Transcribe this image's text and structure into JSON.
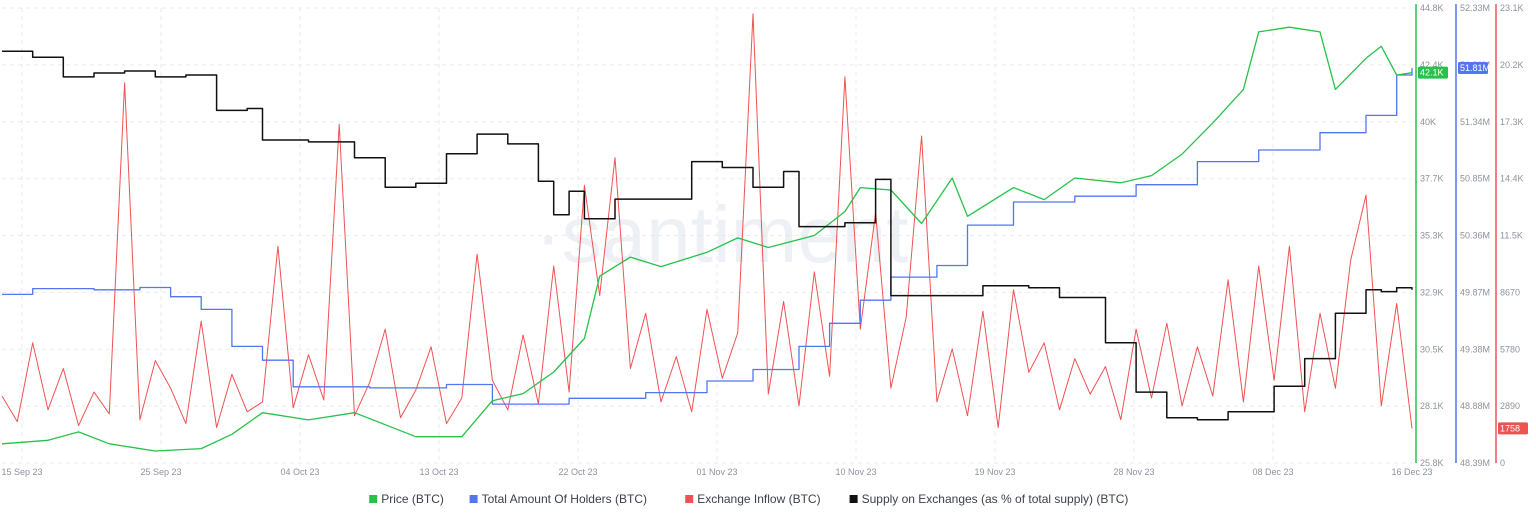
{
  "watermark": "·santiment",
  "colors": {
    "price": "#26c24a",
    "holders": "#5276f0",
    "inflow": "#f05252",
    "supply": "#111111",
    "grid": "#e9ebef",
    "tick": "#8d929c"
  },
  "chart_data": {
    "type": "line",
    "title": "",
    "x_ticks": [
      "15 Sep 23",
      "25 Sep 23",
      "04 Oct 23",
      "13 Oct 23",
      "22 Oct 23",
      "01 Nov 23",
      "10 Nov 23",
      "19 Nov 23",
      "28 Nov 23",
      "08 Dec 23",
      "16 Dec 23"
    ],
    "x_range": [
      "2023-09-15",
      "2023-12-16"
    ],
    "axes": {
      "price": {
        "min": 25800,
        "max": 44800,
        "ticks": [
          "44.8K",
          "42.4K",
          "40K",
          "37.7K",
          "35.3K",
          "32.9K",
          "30.5K",
          "28.1K",
          "25.8K"
        ],
        "latest": "42.1K"
      },
      "holders": {
        "min": 48390000,
        "max": 52330000,
        "ticks": [
          "52.33M",
          "51.81M",
          "51.34M",
          "50.85M",
          "50.36M",
          "49.87M",
          "49.38M",
          "48.88M",
          "48.39M"
        ],
        "latest": "51.81M"
      },
      "inflow": {
        "min": 0,
        "max": 23100,
        "ticks": [
          "23.1K",
          "20.2K",
          "17.3K",
          "14.4K",
          "11.5K",
          "8670",
          "5780",
          "2890",
          "0"
        ],
        "latest": "1758"
      }
    },
    "legend_position": "bottom-center",
    "series": [
      {
        "name": "Price (BTC)",
        "axis": "price",
        "points": [
          [
            "2023-09-15",
            26600
          ],
          [
            "2023-09-18",
            26750
          ],
          [
            "2023-09-20",
            27100
          ],
          [
            "2023-09-22",
            26600
          ],
          [
            "2023-09-25",
            26300
          ],
          [
            "2023-09-28",
            26400
          ],
          [
            "2023-09-30",
            27000
          ],
          [
            "2023-10-02",
            27900
          ],
          [
            "2023-10-05",
            27600
          ],
          [
            "2023-10-08",
            27900
          ],
          [
            "2023-10-10",
            27400
          ],
          [
            "2023-10-12",
            26900
          ],
          [
            "2023-10-15",
            26900
          ],
          [
            "2023-10-17",
            28400
          ],
          [
            "2023-10-19",
            28700
          ],
          [
            "2023-10-21",
            29600
          ],
          [
            "2023-10-23",
            31000
          ],
          [
            "2023-10-24",
            33600
          ],
          [
            "2023-10-26",
            34400
          ],
          [
            "2023-10-28",
            34000
          ],
          [
            "2023-10-31",
            34600
          ],
          [
            "2023-11-02",
            35200
          ],
          [
            "2023-11-04",
            34800
          ],
          [
            "2023-11-07",
            35300
          ],
          [
            "2023-11-09",
            36300
          ],
          [
            "2023-11-10",
            37300
          ],
          [
            "2023-11-12",
            37200
          ],
          [
            "2023-11-14",
            35800
          ],
          [
            "2023-11-16",
            37700
          ],
          [
            "2023-11-17",
            36100
          ],
          [
            "2023-11-20",
            37300
          ],
          [
            "2023-11-22",
            36800
          ],
          [
            "2023-11-24",
            37700
          ],
          [
            "2023-11-27",
            37500
          ],
          [
            "2023-11-29",
            37800
          ],
          [
            "2023-12-01",
            38700
          ],
          [
            "2023-12-03",
            40000
          ],
          [
            "2023-12-05",
            41400
          ],
          [
            "2023-12-06",
            43800
          ],
          [
            "2023-12-08",
            44000
          ],
          [
            "2023-12-10",
            43800
          ],
          [
            "2023-12-11",
            41400
          ],
          [
            "2023-12-13",
            42700
          ],
          [
            "2023-12-14",
            43200
          ],
          [
            "2023-12-15",
            42000
          ],
          [
            "2023-12-16",
            42100
          ]
        ]
      },
      {
        "name": "Total Amount Of Holders (BTC)",
        "axis": "holders",
        "points": [
          [
            "2023-09-15",
            49850000
          ],
          [
            "2023-09-17",
            49900000
          ],
          [
            "2023-09-21",
            49890000
          ],
          [
            "2023-09-24",
            49910000
          ],
          [
            "2023-09-26",
            49830000
          ],
          [
            "2023-09-28",
            49720000
          ],
          [
            "2023-09-30",
            49400000
          ],
          [
            "2023-10-02",
            49280000
          ],
          [
            "2023-10-04",
            49050000
          ],
          [
            "2023-10-09",
            49040000
          ],
          [
            "2023-10-14",
            49070000
          ],
          [
            "2023-10-17",
            48900000
          ],
          [
            "2023-10-22",
            48950000
          ],
          [
            "2023-10-27",
            49000000
          ],
          [
            "2023-10-31",
            49100000
          ],
          [
            "2023-11-03",
            49200000
          ],
          [
            "2023-11-06",
            49400000
          ],
          [
            "2023-11-08",
            49600000
          ],
          [
            "2023-11-10",
            49800000
          ],
          [
            "2023-11-12",
            50000000
          ],
          [
            "2023-11-15",
            50100000
          ],
          [
            "2023-11-17",
            50450000
          ],
          [
            "2023-11-20",
            50650000
          ],
          [
            "2023-11-24",
            50700000
          ],
          [
            "2023-11-28",
            50800000
          ],
          [
            "2023-12-02",
            51000000
          ],
          [
            "2023-12-06",
            51100000
          ],
          [
            "2023-12-10",
            51250000
          ],
          [
            "2023-12-13",
            51400000
          ],
          [
            "2023-12-15",
            51750000
          ],
          [
            "2023-12-16",
            51810000
          ]
        ]
      },
      {
        "name": "Exchange Inflow (BTC)",
        "axis": "inflow",
        "points": [
          [
            "2023-09-15",
            3400
          ],
          [
            "2023-09-16",
            2100
          ],
          [
            "2023-09-17",
            6100
          ],
          [
            "2023-09-18",
            2700
          ],
          [
            "2023-09-19",
            4800
          ],
          [
            "2023-09-20",
            1900
          ],
          [
            "2023-09-21",
            3600
          ],
          [
            "2023-09-22",
            2500
          ],
          [
            "2023-09-23",
            19300
          ],
          [
            "2023-09-24",
            2200
          ],
          [
            "2023-09-25",
            5200
          ],
          [
            "2023-09-26",
            3800
          ],
          [
            "2023-09-27",
            2000
          ],
          [
            "2023-09-28",
            7200
          ],
          [
            "2023-09-29",
            1800
          ],
          [
            "2023-09-30",
            4500
          ],
          [
            "2023-10-01",
            2600
          ],
          [
            "2023-10-02",
            3100
          ],
          [
            "2023-10-03",
            11000
          ],
          [
            "2023-10-04",
            2800
          ],
          [
            "2023-10-05",
            5500
          ],
          [
            "2023-10-06",
            3200
          ],
          [
            "2023-10-07",
            17200
          ],
          [
            "2023-10-08",
            2400
          ],
          [
            "2023-10-09",
            4100
          ],
          [
            "2023-10-10",
            6800
          ],
          [
            "2023-10-11",
            2300
          ],
          [
            "2023-10-12",
            3700
          ],
          [
            "2023-10-13",
            5900
          ],
          [
            "2023-10-14",
            2000
          ],
          [
            "2023-10-15",
            3300
          ],
          [
            "2023-10-16",
            10600
          ],
          [
            "2023-10-17",
            4200
          ],
          [
            "2023-10-18",
            2700
          ],
          [
            "2023-10-19",
            6500
          ],
          [
            "2023-10-20",
            3000
          ],
          [
            "2023-10-21",
            10000
          ],
          [
            "2023-10-22",
            3600
          ],
          [
            "2023-10-23",
            14100
          ],
          [
            "2023-10-24",
            8500
          ],
          [
            "2023-10-25",
            15500
          ],
          [
            "2023-10-26",
            4800
          ],
          [
            "2023-10-27",
            7600
          ],
          [
            "2023-10-28",
            3100
          ],
          [
            "2023-10-29",
            5400
          ],
          [
            "2023-10-30",
            2600
          ],
          [
            "2023-10-31",
            7800
          ],
          [
            "2023-11-01",
            4300
          ],
          [
            "2023-11-02",
            6600
          ],
          [
            "2023-11-03",
            22800
          ],
          [
            "2023-11-04",
            3500
          ],
          [
            "2023-11-05",
            8200
          ],
          [
            "2023-11-06",
            2900
          ],
          [
            "2023-11-07",
            9700
          ],
          [
            "2023-11-08",
            4400
          ],
          [
            "2023-11-09",
            19600
          ],
          [
            "2023-11-10",
            6800
          ],
          [
            "2023-11-11",
            12700
          ],
          [
            "2023-11-12",
            3800
          ],
          [
            "2023-11-13",
            7400
          ],
          [
            "2023-11-14",
            16600
          ],
          [
            "2023-11-15",
            3100
          ],
          [
            "2023-11-16",
            5800
          ],
          [
            "2023-11-17",
            2400
          ],
          [
            "2023-11-18",
            7700
          ],
          [
            "2023-11-19",
            1800
          ],
          [
            "2023-11-20",
            8800
          ],
          [
            "2023-11-21",
            4600
          ],
          [
            "2023-11-22",
            6100
          ],
          [
            "2023-11-23",
            2700
          ],
          [
            "2023-11-24",
            5300
          ],
          [
            "2023-11-25",
            3500
          ],
          [
            "2023-11-26",
            4900
          ],
          [
            "2023-11-27",
            2200
          ],
          [
            "2023-11-28",
            6800
          ],
          [
            "2023-11-29",
            3300
          ],
          [
            "2023-11-30",
            7100
          ],
          [
            "2023-12-01",
            2900
          ],
          [
            "2023-12-02",
            5900
          ],
          [
            "2023-12-03",
            3400
          ],
          [
            "2023-12-04",
            9300
          ],
          [
            "2023-12-05",
            3100
          ],
          [
            "2023-12-06",
            10000
          ],
          [
            "2023-12-07",
            4200
          ],
          [
            "2023-12-08",
            11000
          ],
          [
            "2023-12-09",
            2600
          ],
          [
            "2023-12-10",
            7600
          ],
          [
            "2023-12-11",
            3800
          ],
          [
            "2023-12-12",
            10300
          ],
          [
            "2023-12-13",
            13600
          ],
          [
            "2023-12-14",
            2900
          ],
          [
            "2023-12-15",
            8100
          ],
          [
            "2023-12-16",
            1758
          ]
        ]
      },
      {
        "name": "Supply on Exchanges (as % of total supply) (BTC)",
        "axis": "inflow",
        "points": [
          [
            "2023-09-15",
            20900
          ],
          [
            "2023-09-17",
            20600
          ],
          [
            "2023-09-19",
            19600
          ],
          [
            "2023-09-21",
            19800
          ],
          [
            "2023-09-23",
            19900
          ],
          [
            "2023-09-25",
            19600
          ],
          [
            "2023-09-27",
            19700
          ],
          [
            "2023-09-29",
            17900
          ],
          [
            "2023-10-01",
            18000
          ],
          [
            "2023-10-02",
            16400
          ],
          [
            "2023-10-05",
            16300
          ],
          [
            "2023-10-08",
            15500
          ],
          [
            "2023-10-10",
            14000
          ],
          [
            "2023-10-12",
            14200
          ],
          [
            "2023-10-14",
            15700
          ],
          [
            "2023-10-16",
            16700
          ],
          [
            "2023-10-18",
            16200
          ],
          [
            "2023-10-20",
            14300
          ],
          [
            "2023-10-21",
            12600
          ],
          [
            "2023-10-22",
            13800
          ],
          [
            "2023-10-23",
            12400
          ],
          [
            "2023-10-25",
            13400
          ],
          [
            "2023-10-28",
            13400
          ],
          [
            "2023-10-30",
            15300
          ],
          [
            "2023-11-01",
            15000
          ],
          [
            "2023-11-03",
            14000
          ],
          [
            "2023-11-05",
            14800
          ],
          [
            "2023-11-06",
            12000
          ],
          [
            "2023-11-09",
            12200
          ],
          [
            "2023-11-11",
            14400
          ],
          [
            "2023-11-12",
            8500
          ],
          [
            "2023-11-14",
            8500
          ],
          [
            "2023-11-18",
            9000
          ],
          [
            "2023-11-21",
            8900
          ],
          [
            "2023-11-23",
            8400
          ],
          [
            "2023-11-26",
            6100
          ],
          [
            "2023-11-28",
            3600
          ],
          [
            "2023-11-30",
            2300
          ],
          [
            "2023-12-02",
            2200
          ],
          [
            "2023-12-04",
            2600
          ],
          [
            "2023-12-07",
            3900
          ],
          [
            "2023-12-09",
            5300
          ],
          [
            "2023-12-11",
            7600
          ],
          [
            "2023-12-13",
            8800
          ],
          [
            "2023-12-14",
            8700
          ],
          [
            "2023-12-15",
            8900
          ],
          [
            "2023-12-16",
            8800
          ]
        ]
      }
    ]
  }
}
